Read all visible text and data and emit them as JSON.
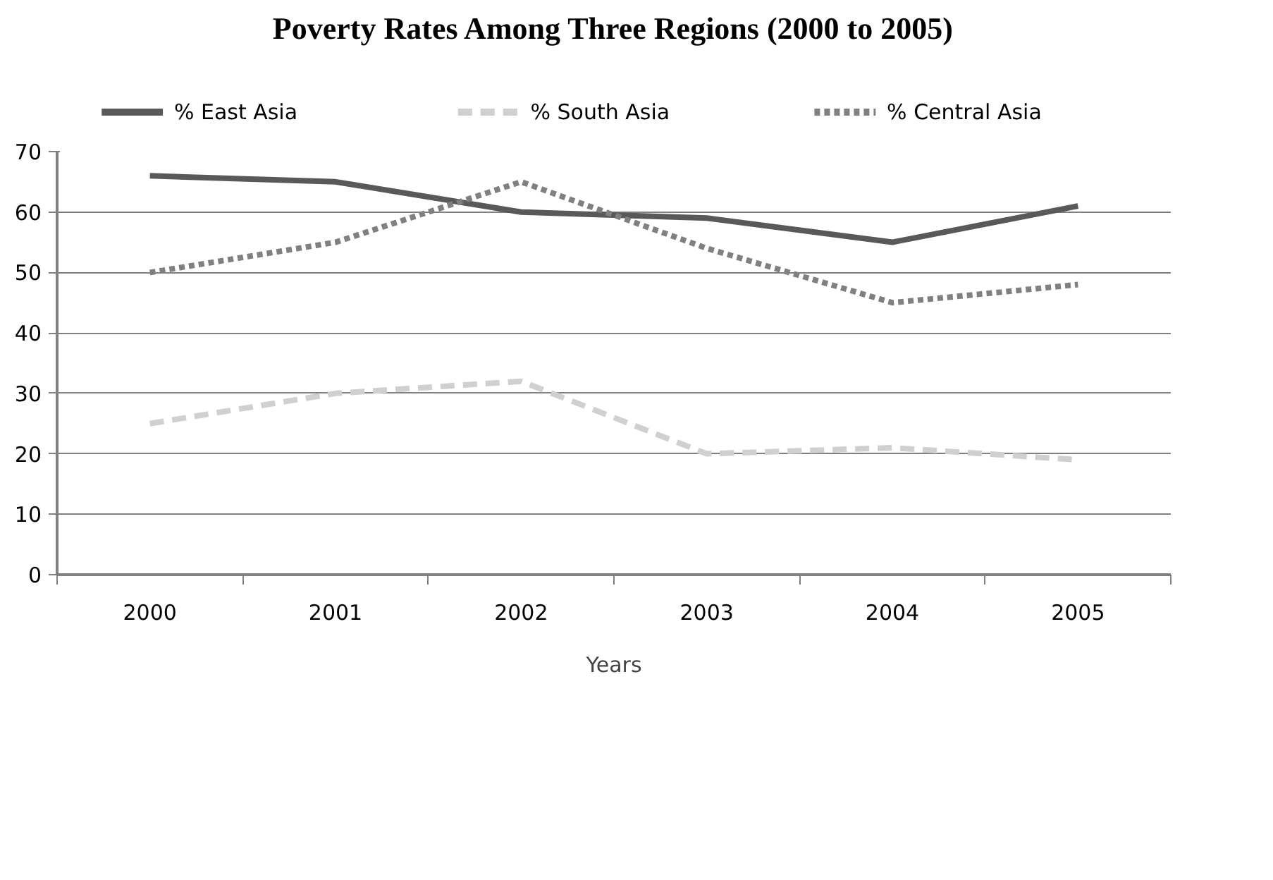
{
  "chart_data": {
    "type": "line",
    "title": "Poverty Rates Among Three Regions (2000 to 2005)",
    "xlabel": "Years",
    "categories": [
      "2000",
      "2001",
      "2002",
      "2003",
      "2004",
      "2005"
    ],
    "ylim": [
      0,
      70
    ],
    "yticks": [
      0,
      10,
      20,
      30,
      40,
      50,
      60,
      70
    ],
    "grid": "y",
    "legend": "top",
    "series": [
      {
        "name": "% East Asia",
        "color": "#595959",
        "line_style": "solid",
        "values": [
          66,
          65,
          60,
          59,
          55,
          61
        ]
      },
      {
        "name": "% South Asia",
        "color": "#d0d0d0",
        "line_style": "dashed",
        "values": [
          25,
          30,
          32,
          20,
          21,
          19
        ]
      },
      {
        "name": "% Central Asia",
        "color": "#808080",
        "line_style": "dotted",
        "values": [
          50,
          55,
          65,
          54,
          45,
          48
        ]
      }
    ]
  }
}
